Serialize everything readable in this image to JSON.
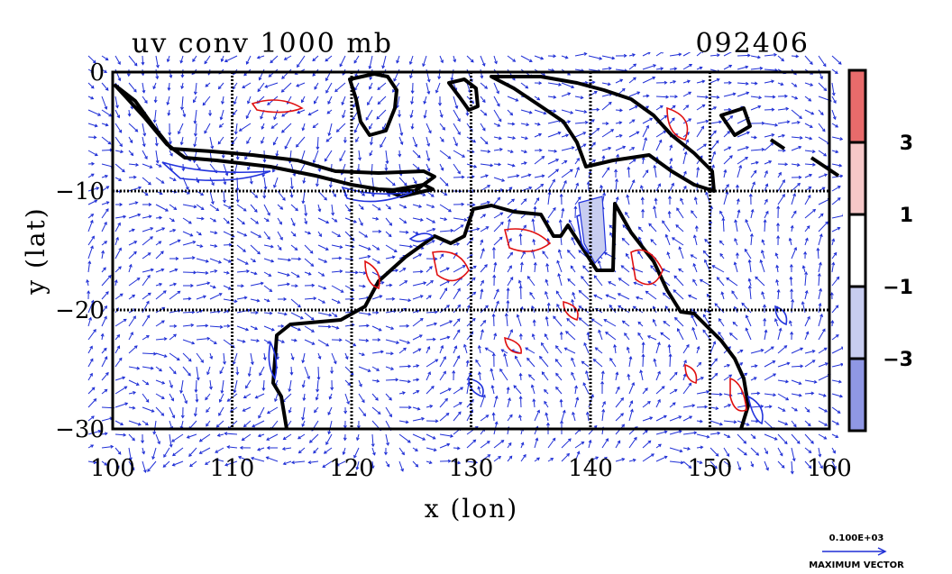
{
  "chart_data": {
    "type": "heatmap",
    "title": "uv conv 1000 mb",
    "subtitle": "092406",
    "xlabel": "x (lon)",
    "ylabel": "y (lat)",
    "xlim": [
      100,
      160
    ],
    "ylim": [
      -30,
      0
    ],
    "x_ticks": [
      100,
      110,
      120,
      130,
      140,
      150,
      160
    ],
    "x_tick_labels": [
      "100",
      "110",
      "120",
      "130",
      "140",
      "150",
      "160"
    ],
    "y_ticks": [
      0,
      -10,
      -20,
      -30
    ],
    "y_tick_labels": [
      "0",
      "−10",
      "−20",
      "−30"
    ],
    "grid": true,
    "colorbar": {
      "levels": [
        {
          "color": "#e86b6b"
        },
        {
          "color": "#f6c8c8"
        },
        {
          "color": "#ffffff"
        },
        {
          "color": "#c8cdf0"
        },
        {
          "color": "#8f97e4"
        }
      ],
      "tick_labels": [
        "3",
        "1",
        "−1",
        "−3"
      ]
    },
    "vector_key": {
      "magnitude_label": "0.100E+03",
      "caption": "MAXIMUM VECTOR"
    },
    "colors": {
      "vectors": "#1f2fd6",
      "positive_contour": "#e01010",
      "negative_contour": "#2233dd",
      "coastline": "#000000"
    }
  }
}
